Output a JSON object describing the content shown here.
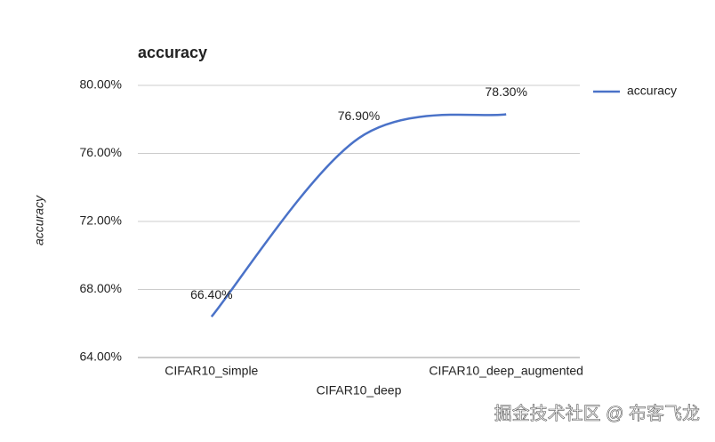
{
  "chart_data": {
    "type": "line",
    "title": "accuracy",
    "y_label": "accuracy",
    "categories": [
      "CIFAR10_simple",
      "CIFAR10_deep",
      "CIFAR10_deep_augmented"
    ],
    "series": [
      {
        "name": "accuracy",
        "color": "#4a72c8",
        "values": [
          66.4,
          76.9,
          78.3
        ],
        "value_labels": [
          "66.40%",
          "76.90%",
          "78.30%"
        ]
      }
    ],
    "ylim": [
      64,
      80
    ],
    "yticks": [
      {
        "value": 64,
        "label": "64.00%"
      },
      {
        "value": 68,
        "label": "68.00%"
      },
      {
        "value": 72,
        "label": "72.00%"
      },
      {
        "value": 76,
        "label": "76.00%"
      },
      {
        "value": 80,
        "label": "80.00%"
      }
    ],
    "grid": true,
    "smooth": true,
    "legend": "right",
    "watermark": "掘金技术社区 @ 布客飞龙"
  }
}
